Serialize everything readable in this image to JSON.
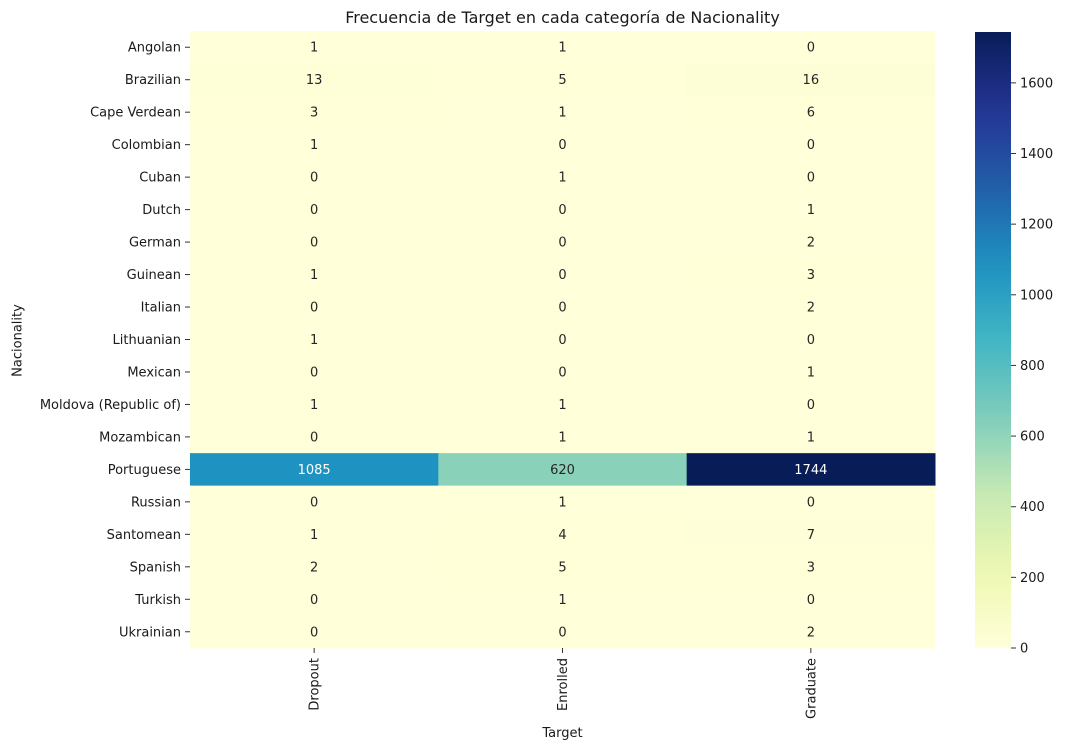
{
  "chart_data": {
    "type": "heatmap",
    "title": "Frecuencia de Target en cada categoría de Nacionality",
    "xlabel": "Target",
    "ylabel": "Nacionality",
    "columns": [
      "Dropout",
      "Enrolled",
      "Graduate"
    ],
    "rows": [
      "Angolan",
      "Brazilian",
      "Cape Verdean",
      "Colombian",
      "Cuban",
      "Dutch",
      "German",
      "Guinean",
      "Italian",
      "Lithuanian",
      "Mexican",
      "Moldova (Republic of)",
      "Mozambican",
      "Portuguese",
      "Russian",
      "Santomean",
      "Spanish",
      "Turkish",
      "Ukrainian"
    ],
    "values": [
      [
        1,
        1,
        0
      ],
      [
        13,
        5,
        16
      ],
      [
        3,
        1,
        6
      ],
      [
        1,
        0,
        0
      ],
      [
        0,
        1,
        0
      ],
      [
        0,
        0,
        1
      ],
      [
        0,
        0,
        2
      ],
      [
        1,
        0,
        3
      ],
      [
        0,
        0,
        2
      ],
      [
        1,
        0,
        0
      ],
      [
        0,
        0,
        1
      ],
      [
        1,
        1,
        0
      ],
      [
        0,
        1,
        1
      ],
      [
        1085,
        620,
        1744
      ],
      [
        0,
        1,
        0
      ],
      [
        1,
        4,
        7
      ],
      [
        2,
        5,
        3
      ],
      [
        0,
        1,
        0
      ],
      [
        0,
        0,
        2
      ]
    ],
    "colormap": "YlGnBu",
    "color_range": [
      0,
      1744
    ],
    "colorbar_ticks": [
      0,
      200,
      400,
      600,
      800,
      1000,
      1200,
      1400,
      1600
    ],
    "annotations": true
  }
}
